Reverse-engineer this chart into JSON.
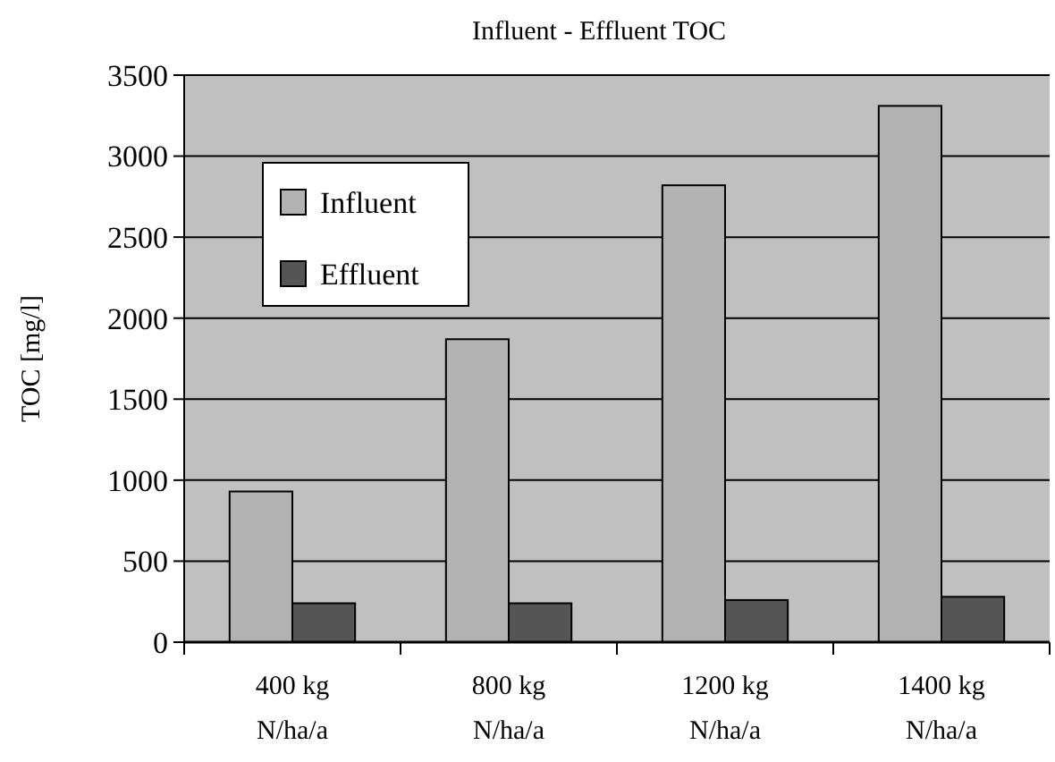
{
  "chart_data": {
    "type": "bar",
    "title": "Influent - Effluent TOC",
    "ylabel": "TOC [mg/l]",
    "categories": [
      "400 kg\nN/ha/a",
      "800 kg\nN/ha/a",
      "1200 kg\nN/ha/a",
      "1400 kg\nN/ha/a"
    ],
    "series": [
      {
        "name": "Influent",
        "color": "#b2b2b2",
        "values": [
          930,
          1870,
          2820,
          3310
        ]
      },
      {
        "name": "Effluent",
        "color": "#555555",
        "values": [
          240,
          240,
          260,
          280
        ]
      }
    ],
    "ylim": [
      0,
      3500
    ],
    "yticks": [
      0,
      500,
      1000,
      1500,
      2000,
      2500,
      3000,
      3500
    ],
    "grid": "y",
    "legend": "top left"
  }
}
